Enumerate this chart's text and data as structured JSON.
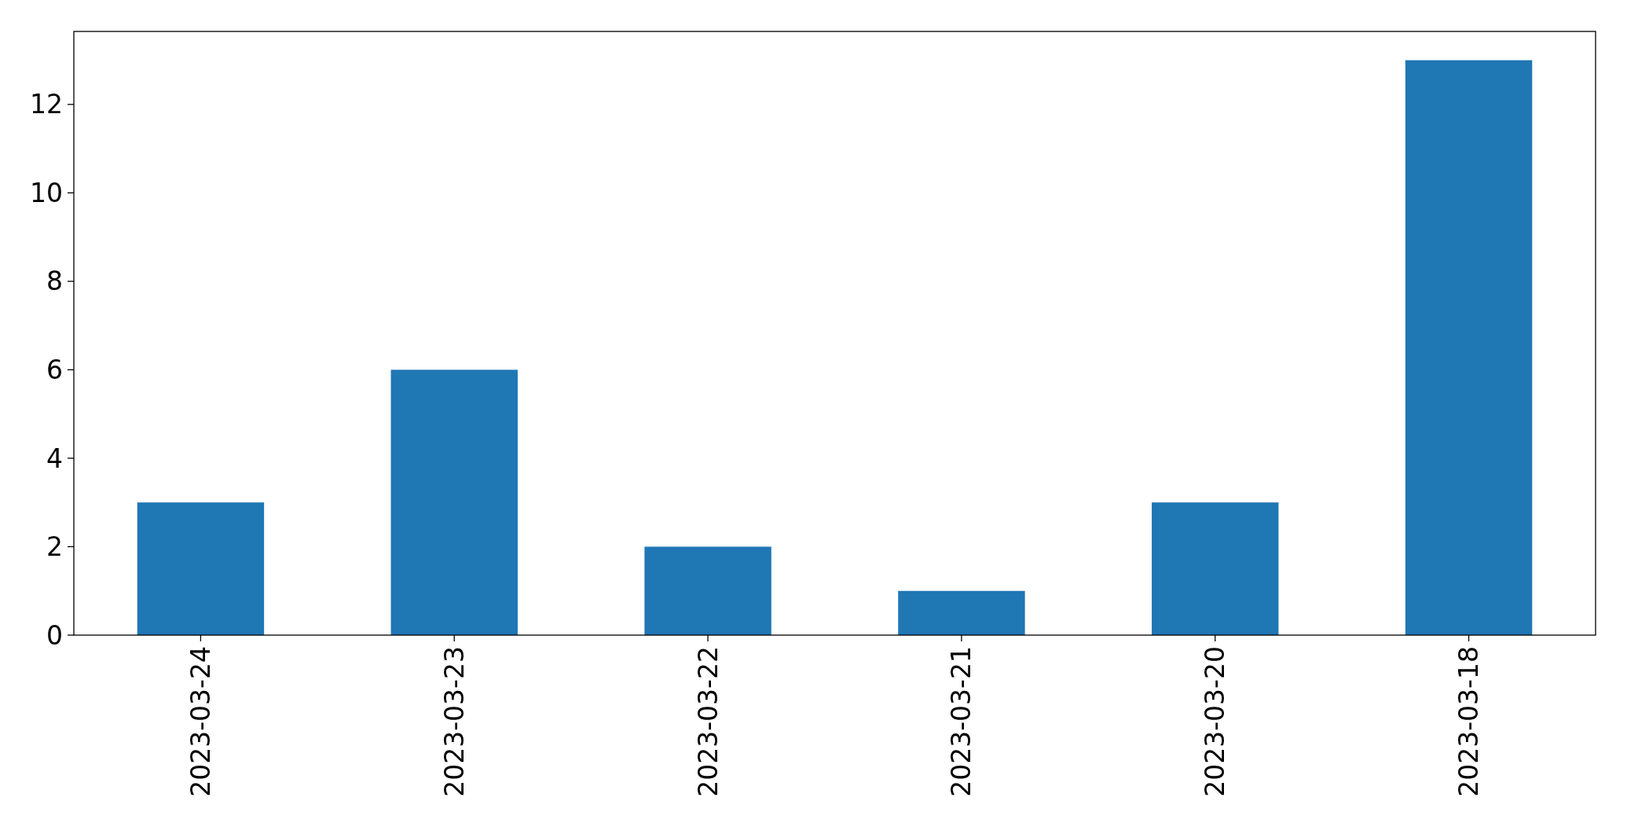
{
  "chart_data": {
    "type": "bar",
    "categories": [
      "2023-03-24",
      "2023-03-23",
      "2023-03-22",
      "2023-03-21",
      "2023-03-20",
      "2023-03-18"
    ],
    "values": [
      3,
      6,
      2,
      1,
      3,
      13
    ],
    "color": "#1f77b4",
    "ylim": [
      0,
      13.65
    ],
    "yticks": [
      0,
      2,
      4,
      6,
      8,
      10,
      12
    ],
    "grid": false
  }
}
